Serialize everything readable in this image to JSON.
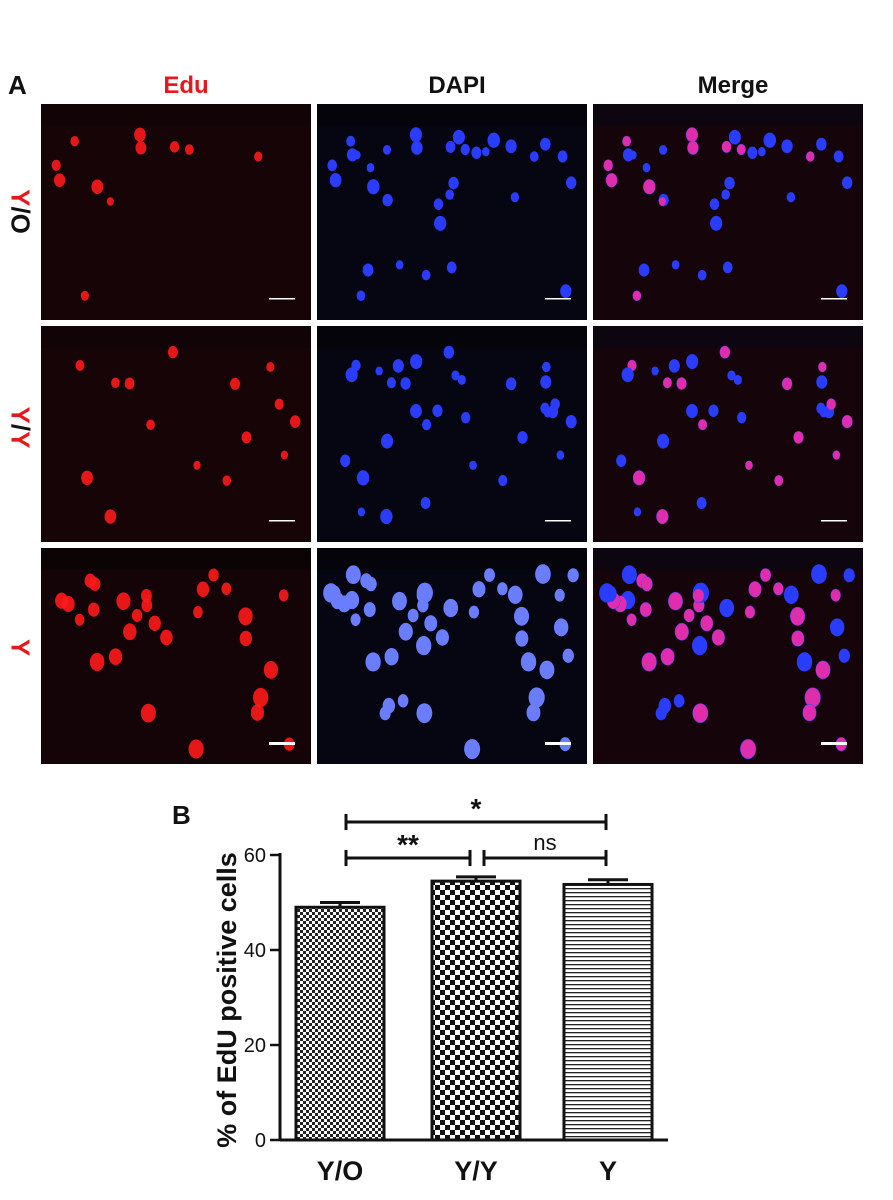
{
  "panel_a": {
    "letter": "A",
    "columns": [
      {
        "label": "Edu",
        "color": "#e8171b"
      },
      {
        "label": "DAPI",
        "color": "#111111"
      },
      {
        "label": "Merge",
        "color": "#111111"
      }
    ],
    "rows": [
      {
        "label_parts": [
          {
            "text": "Y",
            "color": "#e8171b"
          },
          {
            "text": "/O",
            "color": "#111111"
          }
        ]
      },
      {
        "label_parts": [
          {
            "text": "Y",
            "color": "#e8171b"
          },
          {
            "text": "/",
            "color": "#111111"
          },
          {
            "text": "Y",
            "color": "#e8171b"
          }
        ]
      },
      {
        "label_parts": [
          {
            "text": "Y",
            "color": "#e8171b"
          }
        ]
      }
    ],
    "stain_colors": {
      "edu": "#ff1a1a",
      "dapi": "#2a3cff",
      "background": "#05040a"
    }
  },
  "panel_b": {
    "letter": "B"
  },
  "chart_data": {
    "type": "bar",
    "categories": [
      "Y/O",
      "Y/Y",
      "Y"
    ],
    "values": [
      49.0,
      54.5,
      53.8
    ],
    "errors": [
      1.0,
      0.9,
      1.0
    ],
    "fill_patterns": [
      "checker-fine",
      "checker-coarse",
      "horizontal-stripes"
    ],
    "ylabel": "% of EdU positive cells",
    "xlabel": "",
    "ylim": [
      0,
      60
    ],
    "yticks": [
      0,
      20,
      40,
      60
    ],
    "significance": [
      {
        "from": 0,
        "to": 2,
        "label": "*"
      },
      {
        "from": 0,
        "to": 1,
        "label": "**"
      },
      {
        "from": 1,
        "to": 2,
        "label": "ns"
      }
    ]
  }
}
